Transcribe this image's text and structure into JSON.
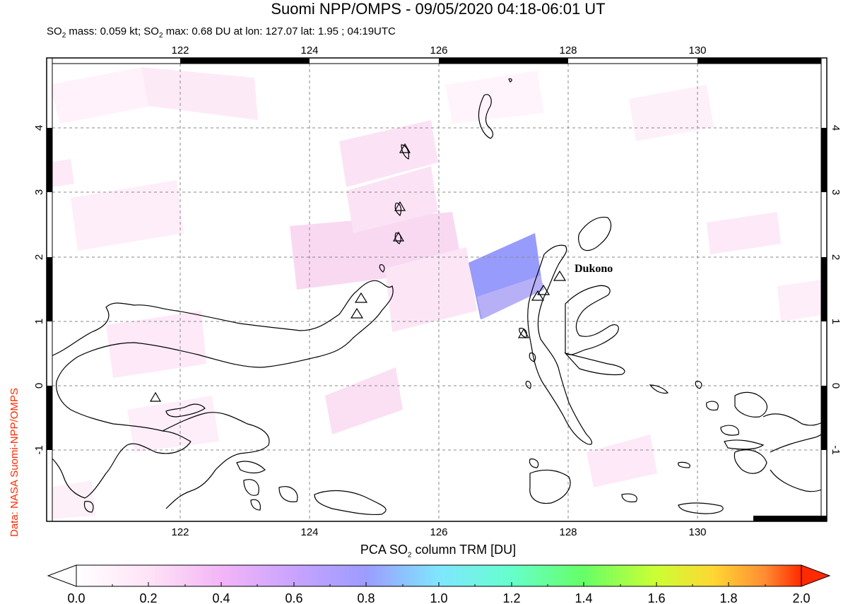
{
  "title": "Suomi NPP/OMPS - 09/05/2020 04:18-06:01 UT",
  "subtitle": {
    "so2_mass_label": "SO",
    "so2_mass_rest": " mass: 0.059 kt; SO",
    "so2_max_rest": " max: 0.68 DU at lon: 127.07 lat: 1.95 ; 04:19UTC"
  },
  "credit": "Data: NASA Suomi-NPP/OMPS",
  "map": {
    "lon_labels": [
      "122",
      "124",
      "126",
      "128",
      "130"
    ],
    "lat_labels": [
      "4",
      "3",
      "2",
      "1",
      "0",
      "-1"
    ],
    "volcano_label": "Dukono"
  },
  "colorbar": {
    "title_prefix": "PCA SO",
    "title_suffix": " column TRM [DU]",
    "ticks": [
      "0.0",
      "0.2",
      "0.4",
      "0.6",
      "0.8",
      "1.0",
      "1.2",
      "1.4",
      "1.6",
      "1.8",
      "2.0"
    ],
    "stops": [
      "#ffffff",
      "#ffd6f6",
      "#e6a8ff",
      "#b7a3ff",
      "#8c9cff",
      "#7fe6ff",
      "#66ffcc",
      "#66ff66",
      "#ccff33",
      "#ffee33",
      "#ff9933",
      "#ff2a00"
    ]
  }
}
